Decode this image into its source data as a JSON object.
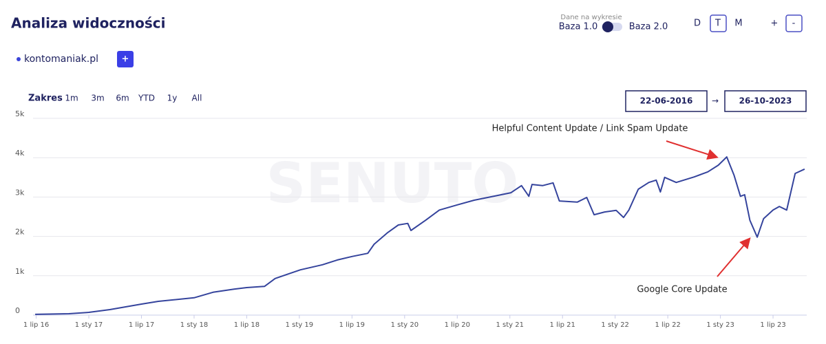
{
  "header": {
    "title": "Analiza widoczności"
  },
  "data_toggle": {
    "caption": "Dane na wykresie",
    "left": "Baza 1.0",
    "right": "Baza 2.0"
  },
  "granularity": [
    "D",
    "T",
    "M"
  ],
  "zoom": [
    "+",
    "-"
  ],
  "domain": {
    "name": "kontomaniak.pl",
    "add": "+"
  },
  "range": {
    "label": "Zakres",
    "options": [
      "1m",
      "3m",
      "6m",
      "YTD",
      "1y",
      "All"
    ]
  },
  "dates": {
    "from": "22-06-2016",
    "arrow": "→",
    "to": "26-10-2023"
  },
  "chart_data": {
    "type": "line",
    "watermark": "SENUTO",
    "color": "#34439c",
    "grid": true,
    "x": [
      2016.49,
      2016.81,
      2017.0,
      2017.2,
      2017.5,
      2017.66,
      2018.0,
      2018.18,
      2018.38,
      2018.5,
      2018.67,
      2018.77,
      2018.9,
      2019.01,
      2019.22,
      2019.36,
      2019.5,
      2019.65,
      2019.71,
      2019.84,
      2019.94,
      2020.03,
      2020.06,
      2020.2,
      2020.33,
      2020.5,
      2020.66,
      2020.79,
      2021.01,
      2021.11,
      2021.18,
      2021.21,
      2021.31,
      2021.41,
      2021.47,
      2021.64,
      2021.73,
      2021.8,
      2021.9,
      2022.01,
      2022.08,
      2022.13,
      2022.22,
      2022.32,
      2022.39,
      2022.43,
      2022.47,
      2022.58,
      2022.75,
      2022.88,
      2022.98,
      2023.06,
      2023.13,
      2023.19,
      2023.23,
      2023.28,
      2023.35,
      2023.41,
      2023.5,
      2023.56,
      2023.63,
      2023.71,
      2023.8
    ],
    "values": [
      20,
      35,
      70,
      140,
      280,
      350,
      440,
      580,
      660,
      700,
      730,
      930,
      1050,
      1150,
      1280,
      1400,
      1490,
      1570,
      1800,
      2100,
      2290,
      2330,
      2150,
      2410,
      2670,
      2800,
      2920,
      2990,
      3110,
      3290,
      3020,
      3320,
      3290,
      3360,
      2900,
      2870,
      2990,
      2550,
      2620,
      2660,
      2480,
      2670,
      3200,
      3370,
      3430,
      3130,
      3500,
      3370,
      3510,
      3640,
      3810,
      4020,
      3550,
      3020,
      3060,
      2410,
      1980,
      2450,
      2670,
      2760,
      2670,
      3600,
      3710
    ],
    "xlim": [
      2016.47,
      2023.82
    ],
    "xticks": [
      {
        "value": 2016.5,
        "label": "1 lip 16"
      },
      {
        "value": 2017.0,
        "label": "1 sty 17"
      },
      {
        "value": 2017.5,
        "label": "1 lip 17"
      },
      {
        "value": 2018.0,
        "label": "1 sty 18"
      },
      {
        "value": 2018.5,
        "label": "1 lip 18"
      },
      {
        "value": 2019.0,
        "label": "1 sty 19"
      },
      {
        "value": 2019.5,
        "label": "1 lip 19"
      },
      {
        "value": 2020.0,
        "label": "1 sty 20"
      },
      {
        "value": 2020.5,
        "label": "1 lip 20"
      },
      {
        "value": 2021.0,
        "label": "1 sty 21"
      },
      {
        "value": 2021.5,
        "label": "1 lip 21"
      },
      {
        "value": 2022.0,
        "label": "1 sty 22"
      },
      {
        "value": 2022.5,
        "label": "1 lip 22"
      },
      {
        "value": 2023.0,
        "label": "1 sty 23"
      },
      {
        "value": 2023.5,
        "label": "1 lip 23"
      }
    ],
    "ylim": [
      0,
      5000
    ],
    "yticks": [
      0,
      {
        "value": 1000,
        "label": "1k"
      },
      {
        "value": 2000,
        "label": "2k"
      },
      {
        "value": 3000,
        "label": "3k"
      },
      {
        "value": 4000,
        "label": "4k"
      },
      {
        "value": 5000,
        "label": "5k"
      }
    ],
    "annotations": [
      "Helpful Content Update / Link Spam Update",
      "Google Core Update"
    ]
  }
}
